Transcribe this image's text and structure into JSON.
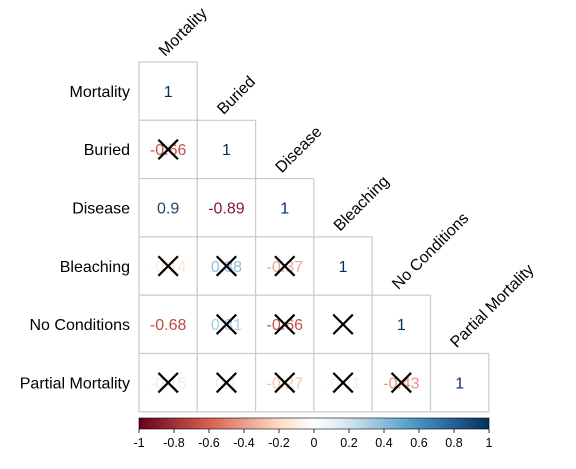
{
  "chart_data": {
    "type": "heatmap",
    "variables": [
      "Mortality",
      "Buried",
      "Disease",
      "Bleaching",
      "No Conditions",
      "Partial Mortality"
    ],
    "cells": [
      {
        "row": 0,
        "col": 0,
        "label": "1",
        "value": 1,
        "crossed": false
      },
      {
        "row": 1,
        "col": 0,
        "label": "-0.66",
        "value": -0.66,
        "crossed": true
      },
      {
        "row": 1,
        "col": 1,
        "label": "1",
        "value": 1,
        "crossed": false
      },
      {
        "row": 2,
        "col": 0,
        "label": "0.9",
        "value": 0.9,
        "crossed": false
      },
      {
        "row": 2,
        "col": 1,
        "label": "-0.89",
        "value": -0.89,
        "crossed": false
      },
      {
        "row": 2,
        "col": 2,
        "label": "1",
        "value": 1,
        "crossed": false
      },
      {
        "row": 3,
        "col": 0,
        "label": "-0.14",
        "value": -0.14,
        "crossed": true
      },
      {
        "row": 3,
        "col": 1,
        "label": "0.38",
        "value": 0.38,
        "crossed": true
      },
      {
        "row": 3,
        "col": 2,
        "label": "-0.37",
        "value": -0.37,
        "crossed": true
      },
      {
        "row": 3,
        "col": 3,
        "label": "1",
        "value": 1,
        "crossed": false
      },
      {
        "row": 4,
        "col": 0,
        "label": "-0.68",
        "value": -0.68,
        "crossed": false
      },
      {
        "row": 4,
        "col": 1,
        "label": "0.31",
        "value": 0.31,
        "crossed": true
      },
      {
        "row": 4,
        "col": 2,
        "label": "-0.66",
        "value": -0.66,
        "crossed": true
      },
      {
        "row": 4,
        "col": 3,
        "label": "0",
        "value": 0,
        "crossed": true
      },
      {
        "row": 4,
        "col": 4,
        "label": "1",
        "value": 1,
        "crossed": false
      },
      {
        "row": 5,
        "col": 0,
        "label": "-0.15",
        "value": -0.15,
        "crossed": true
      },
      {
        "row": 5,
        "col": 1,
        "label": "0.1",
        "value": 0.1,
        "crossed": true
      },
      {
        "row": 5,
        "col": 2,
        "label": "-0.27",
        "value": -0.27,
        "crossed": true
      },
      {
        "row": 5,
        "col": 3,
        "label": "-0.11",
        "value": -0.11,
        "crossed": true
      },
      {
        "row": 5,
        "col": 4,
        "label": "-0.43",
        "value": -0.43,
        "crossed": true
      },
      {
        "row": 5,
        "col": 5,
        "label": "1",
        "value": 1,
        "crossed": false
      }
    ],
    "colorbar": {
      "ticks": [
        "-1",
        "-0.8",
        "-0.6",
        "-0.4",
        "-0.2",
        "0",
        "0.2",
        "0.4",
        "0.6",
        "0.8",
        "1"
      ],
      "range": [
        -1,
        1
      ],
      "placement": "bottom"
    },
    "colors": {
      "neg_strong": "#67001f",
      "neg_mid": "#d6604d",
      "neg_light": "#fddbc7",
      "neutral": "#ffffff",
      "pos_light": "#d1e5f0",
      "pos_mid": "#4393c3",
      "pos_strong": "#053061",
      "grid": "#cccccc",
      "cross": "#000000"
    },
    "triangle": "lower",
    "grid": true
  }
}
